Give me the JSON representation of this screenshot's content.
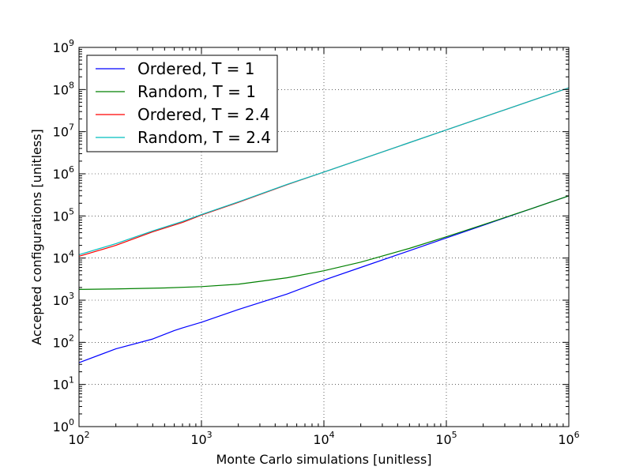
{
  "chart_data": {
    "type": "line",
    "xlabel": "Monte Carlo simulations [unitless]",
    "ylabel": "Accepted configurations [unitless]",
    "xscale": "log",
    "yscale": "log",
    "xlim": [
      100,
      1000000
    ],
    "ylim": [
      1,
      1000000000
    ],
    "grid": true,
    "legend_position": "top-left",
    "x_ticks": [
      {
        "base": "10",
        "exp": "2",
        "value": 100
      },
      {
        "base": "10",
        "exp": "3",
        "value": 1000
      },
      {
        "base": "10",
        "exp": "4",
        "value": 10000
      },
      {
        "base": "10",
        "exp": "5",
        "value": 100000
      },
      {
        "base": "10",
        "exp": "6",
        "value": 1000000
      }
    ],
    "y_ticks": [
      {
        "base": "10",
        "exp": "0",
        "value": 1
      },
      {
        "base": "10",
        "exp": "1",
        "value": 10
      },
      {
        "base": "10",
        "exp": "2",
        "value": 100
      },
      {
        "base": "10",
        "exp": "3",
        "value": 1000
      },
      {
        "base": "10",
        "exp": "4",
        "value": 10000
      },
      {
        "base": "10",
        "exp": "5",
        "value": 100000
      },
      {
        "base": "10",
        "exp": "6",
        "value": 1000000
      },
      {
        "base": "10",
        "exp": "7",
        "value": 10000000
      },
      {
        "base": "10",
        "exp": "8",
        "value": 100000000
      },
      {
        "base": "10",
        "exp": "9",
        "value": 1000000000
      }
    ],
    "series": [
      {
        "name": "Ordered, T = 1",
        "color": "#0000ff",
        "x": [
          100,
          200,
          400,
          600,
          700,
          1000,
          2000,
          5000,
          10000,
          20000,
          50000,
          100000,
          200000,
          500000,
          1000000
        ],
        "y": [
          33,
          70,
          120,
          190,
          220,
          300,
          600,
          1400,
          3000,
          6000,
          15000,
          30000,
          60000,
          150000,
          300000
        ]
      },
      {
        "name": "Random, T = 1",
        "color": "#008000",
        "x": [
          100,
          200,
          500,
          1000,
          2000,
          5000,
          10000,
          20000,
          50000,
          100000,
          200000,
          500000,
          1000000
        ],
        "y": [
          1800,
          1850,
          1950,
          2100,
          2400,
          3400,
          5000,
          8000,
          17000,
          32000,
          62000,
          150000,
          300000
        ]
      },
      {
        "name": "Ordered, T = 2.4",
        "color": "#ff0000",
        "x": [
          100,
          200,
          400,
          700,
          1000,
          2000,
          5000,
          10000,
          100000,
          1000000
        ],
        "y": [
          11000,
          20000,
          42000,
          70000,
          105000,
          210000,
          550000,
          1100000,
          11000000,
          110000000
        ]
      },
      {
        "name": "Random, T = 2.4",
        "color": "#00bfbf",
        "x": [
          100,
          200,
          400,
          700,
          1000,
          2000,
          5000,
          10000,
          100000,
          1000000
        ],
        "y": [
          12000,
          22000,
          44000,
          74000,
          108000,
          215000,
          560000,
          1100000,
          11000000,
          110000000
        ]
      }
    ]
  }
}
